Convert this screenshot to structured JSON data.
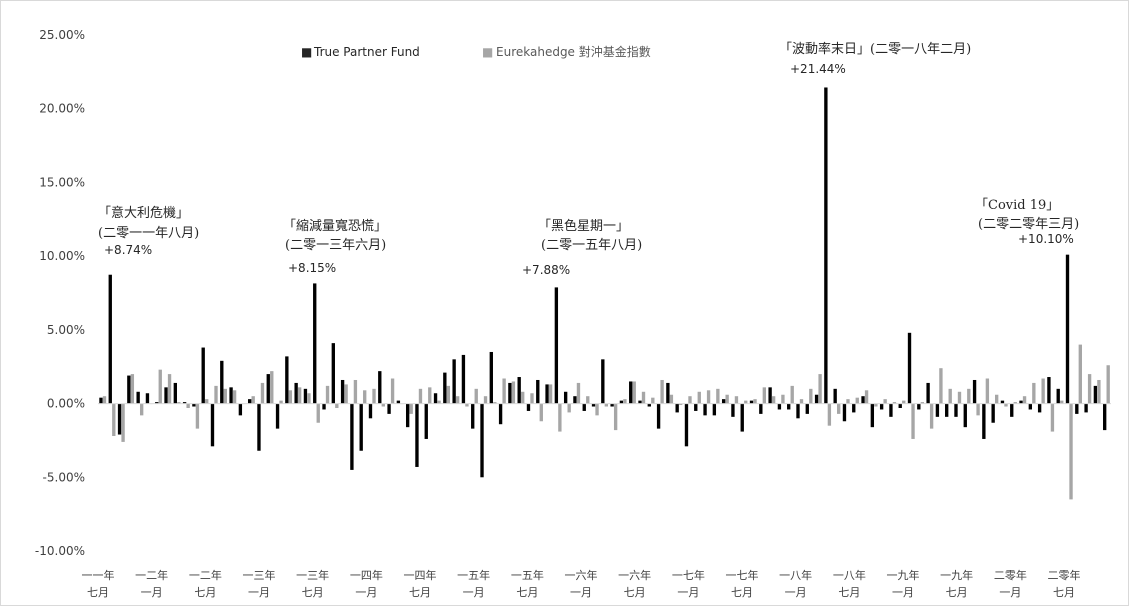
{
  "chart_data": {
    "type": "bar",
    "ylim": [
      -10,
      25
    ],
    "yticks": [
      25,
      20,
      15,
      10,
      5,
      0,
      -5,
      -10
    ],
    "ytick_labels": [
      "25.00%",
      "20.00%",
      "15.00%",
      "10.00%",
      "5.00%",
      "0.00%",
      "-5.00%",
      "-10.00%"
    ],
    "x_tick_labels": [
      [
        "一一年",
        "七月"
      ],
      [
        "一二年",
        "一月"
      ],
      [
        "一二年",
        "七月"
      ],
      [
        "一三年",
        "一月"
      ],
      [
        "一三年",
        "七月"
      ],
      [
        "一四年",
        "一月"
      ],
      [
        "一四年",
        "七月"
      ],
      [
        "一五年",
        "一月"
      ],
      [
        "一五年",
        "七月"
      ],
      [
        "一六年",
        "一月"
      ],
      [
        "一六年",
        "七月"
      ],
      [
        "一七年",
        "一月"
      ],
      [
        "一七年",
        "七月"
      ],
      [
        "一八年",
        "一月"
      ],
      [
        "一八年",
        "七月"
      ],
      [
        "一九年",
        "一月"
      ],
      [
        "一九年",
        "七月"
      ],
      [
        "二零年",
        "一月"
      ],
      [
        "二零年",
        "七月"
      ]
    ],
    "colors": {
      "fund": "#000000",
      "index": "#a6a6a6",
      "axis": "#d9d9d9"
    },
    "legend_position": "top",
    "series": [
      {
        "name": "True Partner Fund",
        "legend_marker": "■",
        "values": [
          0.4,
          8.74,
          -2.1,
          1.9,
          0.8,
          0.7,
          0.1,
          1.1,
          1.4,
          0.1,
          -0.2,
          3.8,
          -2.9,
          2.9,
          1.1,
          -0.8,
          0.3,
          -3.2,
          2.0,
          -1.7,
          3.2,
          1.4,
          1.0,
          8.15,
          -0.4,
          4.1,
          1.6,
          -4.5,
          -3.2,
          -1.0,
          2.2,
          -0.7,
          0.2,
          -1.6,
          -4.3,
          -2.4,
          0.7,
          2.1,
          3.0,
          3.3,
          -1.7,
          -5.0,
          3.5,
          -1.4,
          1.4,
          1.8,
          -0.5,
          1.6,
          1.3,
          7.88,
          0.8,
          0.5,
          -0.5,
          -0.2,
          3.0,
          -0.2,
          0.2,
          1.5,
          0.2,
          -0.2,
          -1.7,
          1.4,
          -0.6,
          -2.9,
          -0.5,
          -0.8,
          -0.8,
          0.3,
          -0.9,
          -1.9,
          0.2,
          -0.7,
          1.1,
          -0.4,
          -0.4,
          -1.0,
          -0.7,
          0.6,
          21.44,
          1.0,
          -1.2,
          -0.6,
          0.5,
          -1.6,
          -0.4,
          -0.9,
          -0.3,
          4.8,
          -0.4,
          1.4,
          -0.9,
          -0.9,
          -0.9,
          -1.6,
          1.6,
          -2.4,
          -1.3,
          0.2,
          -0.9,
          0.2,
          -0.4,
          -0.6,
          1.8,
          1.0,
          10.1,
          -0.7,
          -0.6,
          1.2,
          -1.8
        ]
      },
      {
        "name": "Eurekahedge 對沖基金指數",
        "legend_marker": "■",
        "values": [
          0.5,
          -2.2,
          -2.6,
          2.0,
          -0.8,
          0.0,
          2.3,
          2.0,
          0.1,
          -0.3,
          -1.7,
          0.3,
          1.2,
          1.0,
          0.9,
          0.0,
          0.5,
          1.4,
          2.2,
          0.2,
          0.9,
          1.1,
          0.7,
          -1.3,
          1.2,
          -0.3,
          1.3,
          1.6,
          0.9,
          1.0,
          -0.2,
          1.7,
          0.0,
          -0.7,
          1.0,
          1.1,
          0.2,
          1.2,
          0.5,
          -0.2,
          1.0,
          0.5,
          0.1,
          1.7,
          1.5,
          0.8,
          0.7,
          -1.2,
          1.3,
          -1.9,
          -0.6,
          1.4,
          0.5,
          -0.8,
          -0.2,
          -1.8,
          0.3,
          1.5,
          0.8,
          0.4,
          1.6,
          0.6,
          -0.1,
          0.5,
          0.8,
          0.9,
          1.0,
          0.6,
          0.5,
          0.2,
          0.3,
          1.1,
          0.5,
          0.6,
          1.2,
          0.3,
          1.0,
          2.0,
          -1.5,
          -0.7,
          0.3,
          0.4,
          0.9,
          -0.2,
          0.3,
          0.1,
          0.2,
          -2.4,
          0.1,
          -1.7,
          2.4,
          1.0,
          0.8,
          1.0,
          -0.8,
          1.7,
          0.6,
          -0.2,
          0.1,
          0.5,
          1.4,
          1.7,
          -1.9,
          0.2,
          -6.5,
          4.0,
          2.0,
          1.6,
          2.6
        ]
      }
    ],
    "annotations": [
      {
        "lines": [
          "「意大利危機」",
          "(二零一一年八月)"
        ],
        "value_label": "+8.74%"
      },
      {
        "lines": [
          "「縮減量寬恐慌」",
          "(二零一三年六月)"
        ],
        "value_label": "+8.15%"
      },
      {
        "lines": [
          "「黑色星期一」",
          "(二零一五年八月)"
        ],
        "value_label": "+7.88%"
      },
      {
        "lines": [
          "「波動率末日」(二零一八年二月)"
        ],
        "value_label": "+21.44%"
      },
      {
        "lines": [
          "「Covid 19」",
          "(二零二零年三月)"
        ],
        "value_label": "+10.10%"
      }
    ]
  }
}
